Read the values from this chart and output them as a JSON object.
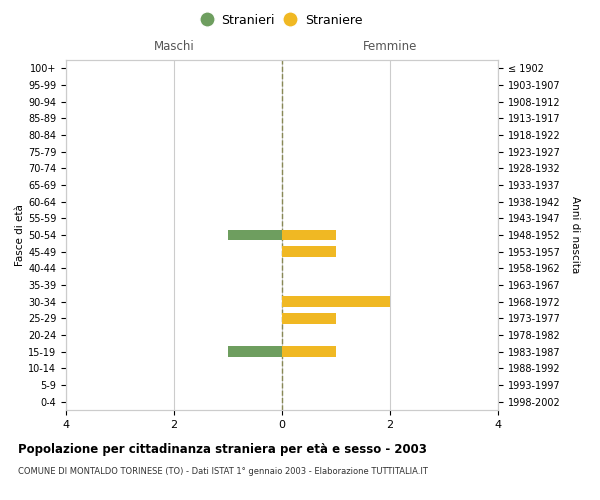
{
  "age_groups": [
    "100+",
    "95-99",
    "90-94",
    "85-89",
    "80-84",
    "75-79",
    "70-74",
    "65-69",
    "60-64",
    "55-59",
    "50-54",
    "45-49",
    "40-44",
    "35-39",
    "30-34",
    "25-29",
    "20-24",
    "15-19",
    "10-14",
    "5-9",
    "0-4"
  ],
  "birth_years": [
    "≤ 1902",
    "1903-1907",
    "1908-1912",
    "1913-1917",
    "1918-1922",
    "1923-1927",
    "1928-1932",
    "1933-1937",
    "1938-1942",
    "1943-1947",
    "1948-1952",
    "1953-1957",
    "1958-1962",
    "1963-1967",
    "1968-1972",
    "1973-1977",
    "1978-1982",
    "1983-1987",
    "1988-1992",
    "1993-1997",
    "1998-2002"
  ],
  "maschi": [
    0,
    0,
    0,
    0,
    0,
    0,
    0,
    0,
    0,
    0,
    -1,
    0,
    0,
    0,
    0,
    0,
    0,
    -1,
    0,
    0,
    0
  ],
  "femmine": [
    0,
    0,
    0,
    0,
    0,
    0,
    0,
    0,
    0,
    0,
    1,
    1,
    0,
    0,
    2,
    1,
    0,
    1,
    0,
    0,
    0
  ],
  "color_maschi": "#6e9e5f",
  "color_femmine": "#f0b823",
  "title": "Popolazione per cittadinanza straniera per età e sesso - 2003",
  "subtitle": "COMUNE DI MONTALDO TORINESE (TO) - Dati ISTAT 1° gennaio 2003 - Elaborazione TUTTITALIA.IT",
  "xlabel_left": "Maschi",
  "xlabel_right": "Femmine",
  "ylabel_left": "Fasce di età",
  "ylabel_right": "Anni di nascita",
  "legend_maschi": "Stranieri",
  "legend_femmine": "Straniere",
  "xlim": 4,
  "background_color": "#ffffff",
  "grid_color": "#cccccc",
  "dashed_line_color": "#888855"
}
